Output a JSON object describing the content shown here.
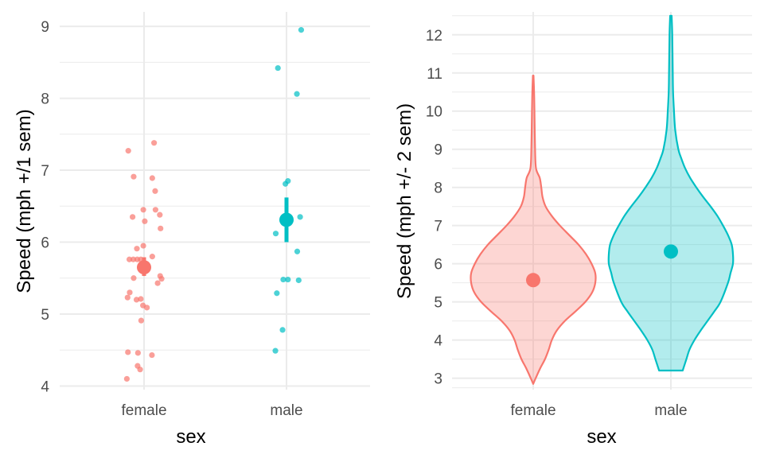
{
  "colors": {
    "female": "#F8766D",
    "male": "#00BFC4",
    "grid": "#EBEBEB"
  },
  "chart_data": [
    {
      "type": "scatter",
      "xlabel": "sex",
      "ylabel": "Speed (mph +/1 sem)",
      "categories": [
        "female",
        "male"
      ],
      "ylim": [
        3.95,
        9.2
      ],
      "yticks": [
        4,
        5,
        6,
        7,
        8,
        9
      ],
      "grid": true,
      "legend": "none",
      "points": {
        "female": [
          {
            "dx": 0.28,
            "y": 7.38
          },
          {
            "dx": -0.44,
            "y": 7.27
          },
          {
            "dx": -0.29,
            "y": 6.91
          },
          {
            "dx": 0.23,
            "y": 6.89
          },
          {
            "dx": 0.31,
            "y": 6.71
          },
          {
            "dx": -0.02,
            "y": 6.45
          },
          {
            "dx": 0.32,
            "y": 6.45
          },
          {
            "dx": -0.32,
            "y": 6.35
          },
          {
            "dx": 0.44,
            "y": 6.38
          },
          {
            "dx": 0.02,
            "y": 6.29
          },
          {
            "dx": 0.46,
            "y": 6.19
          },
          {
            "dx": -0.02,
            "y": 5.95
          },
          {
            "dx": -0.2,
            "y": 5.91
          },
          {
            "dx": 0.23,
            "y": 5.8
          },
          {
            "dx": -0.41,
            "y": 5.76
          },
          {
            "dx": -0.3,
            "y": 5.76
          },
          {
            "dx": -0.19,
            "y": 5.76
          },
          {
            "dx": -0.09,
            "y": 5.76
          },
          {
            "dx": 0.45,
            "y": 5.53
          },
          {
            "dx": 0.49,
            "y": 5.49
          },
          {
            "dx": 0.38,
            "y": 5.43
          },
          {
            "dx": -0.29,
            "y": 5.5
          },
          {
            "dx": -0.4,
            "y": 5.3
          },
          {
            "dx": -0.46,
            "y": 5.23
          },
          {
            "dx": -0.09,
            "y": 5.21
          },
          {
            "dx": -0.21,
            "y": 5.2
          },
          {
            "dx": -0.03,
            "y": 5.12
          },
          {
            "dx": 0.08,
            "y": 5.09
          },
          {
            "dx": -0.08,
            "y": 4.91
          },
          {
            "dx": -0.45,
            "y": 4.47
          },
          {
            "dx": -0.17,
            "y": 4.46
          },
          {
            "dx": 0.22,
            "y": 4.43
          },
          {
            "dx": -0.18,
            "y": 4.28
          },
          {
            "dx": -0.11,
            "y": 4.23
          },
          {
            "dx": -0.48,
            "y": 4.1
          }
        ],
        "male": [
          {
            "dx": 0.41,
            "y": 8.95
          },
          {
            "dx": -0.24,
            "y": 8.42
          },
          {
            "dx": 0.29,
            "y": 8.06
          },
          {
            "dx": 0.04,
            "y": 6.85
          },
          {
            "dx": -0.03,
            "y": 6.81
          },
          {
            "dx": -0.3,
            "y": 6.12
          },
          {
            "dx": 0.38,
            "y": 6.35
          },
          {
            "dx": 0.3,
            "y": 5.87
          },
          {
            "dx": -0.09,
            "y": 5.48
          },
          {
            "dx": 0.04,
            "y": 5.48
          },
          {
            "dx": 0.34,
            "y": 5.47
          },
          {
            "dx": -0.27,
            "y": 5.29
          },
          {
            "dx": -0.11,
            "y": 4.78
          },
          {
            "dx": -0.31,
            "y": 4.49
          }
        ]
      },
      "summary": [
        {
          "name": "female",
          "mean": 5.65,
          "low": 5.53,
          "high": 5.79
        },
        {
          "name": "male",
          "mean": 6.31,
          "low": 6.0,
          "high": 6.62
        }
      ]
    },
    {
      "type": "violin",
      "xlabel": "sex",
      "ylabel": "Speed (mph +/- 2 sem)",
      "categories": [
        "female",
        "male"
      ],
      "ylim": [
        2.7,
        12.6
      ],
      "yticks": [
        3,
        4,
        5,
        6,
        7,
        8,
        9,
        10,
        11,
        12
      ],
      "grid": true,
      "legend": "none",
      "violins": [
        {
          "name": "female",
          "min": 2.85,
          "max": 10.93,
          "profile": [
            [
              2.85,
              0.0
            ],
            [
              3.0,
              0.04
            ],
            [
              3.25,
              0.11
            ],
            [
              3.5,
              0.19
            ],
            [
              3.75,
              0.25
            ],
            [
              4.0,
              0.3
            ],
            [
              4.25,
              0.38
            ],
            [
              4.5,
              0.51
            ],
            [
              4.75,
              0.68
            ],
            [
              5.0,
              0.84
            ],
            [
              5.25,
              0.95
            ],
            [
              5.5,
              1.0
            ],
            [
              5.75,
              1.0
            ],
            [
              6.0,
              0.94
            ],
            [
              6.25,
              0.85
            ],
            [
              6.5,
              0.73
            ],
            [
              6.75,
              0.58
            ],
            [
              7.0,
              0.43
            ],
            [
              7.25,
              0.3
            ],
            [
              7.5,
              0.2
            ],
            [
              7.75,
              0.15
            ],
            [
              8.0,
              0.13
            ],
            [
              8.25,
              0.105
            ],
            [
              8.5,
              0.045
            ],
            [
              9.0,
              0.03
            ],
            [
              10.0,
              0.02
            ],
            [
              10.5,
              0.014
            ],
            [
              10.93,
              0.005
            ]
          ],
          "point": 5.57
        },
        {
          "name": "male",
          "min": 3.2,
          "max": 12.5,
          "profile": [
            [
              3.2,
              0.19
            ],
            [
              3.5,
              0.25
            ],
            [
              3.75,
              0.3
            ],
            [
              4.0,
              0.38
            ],
            [
              4.25,
              0.48
            ],
            [
              4.5,
              0.59
            ],
            [
              4.75,
              0.7
            ],
            [
              5.0,
              0.8
            ],
            [
              5.5,
              0.92
            ],
            [
              5.75,
              0.96
            ],
            [
              6.0,
              1.0
            ],
            [
              6.25,
              1.0
            ],
            [
              6.5,
              0.98
            ],
            [
              6.75,
              0.92
            ],
            [
              7.0,
              0.84
            ],
            [
              7.25,
              0.75
            ],
            [
              7.5,
              0.64
            ],
            [
              7.75,
              0.52
            ],
            [
              8.0,
              0.41
            ],
            [
              8.25,
              0.31
            ],
            [
              8.5,
              0.23
            ],
            [
              8.75,
              0.17
            ],
            [
              9.0,
              0.12
            ],
            [
              9.5,
              0.07
            ],
            [
              10.0,
              0.05
            ],
            [
              10.5,
              0.035
            ],
            [
              11.0,
              0.03
            ],
            [
              12.0,
              0.022
            ],
            [
              12.5,
              0.012
            ]
          ],
          "point": 6.32
        }
      ]
    }
  ]
}
